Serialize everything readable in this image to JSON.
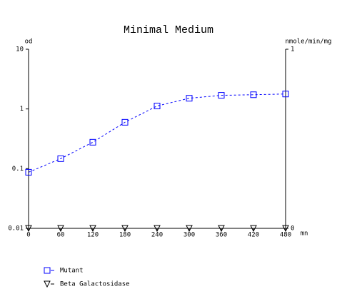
{
  "chart_data": {
    "type": "line",
    "title": "Minimal Medium",
    "y_label": "od",
    "y2_label": "nmole/min/mg",
    "x_label": "mn",
    "x": [
      0,
      60,
      120,
      180,
      240,
      300,
      360,
      420,
      480
    ],
    "xlim": [
      0,
      480
    ],
    "xticks": [
      0,
      60,
      120,
      180,
      240,
      300,
      360,
      420,
      480
    ],
    "ylim": [
      0.01,
      10
    ],
    "yticks": [
      0.01,
      0.1,
      1,
      10
    ],
    "y_scale": "log",
    "y2lim": [
      0,
      1
    ],
    "y2ticks": [
      0,
      1
    ],
    "series": [
      {
        "name": "Mutant",
        "color": "#0000ff",
        "marker": "square",
        "linestyle": "dashed",
        "values": [
          0.087,
          0.147,
          0.277,
          0.598,
          1.12,
          1.51,
          1.69,
          1.73,
          1.78
        ]
      },
      {
        "name": "Beta Galactosidase",
        "color": "#000000",
        "marker": "triangle",
        "linestyle": "dashed",
        "axis": "y2",
        "values": [
          0,
          0,
          0,
          0,
          0,
          0,
          0,
          0,
          0
        ]
      }
    ]
  }
}
